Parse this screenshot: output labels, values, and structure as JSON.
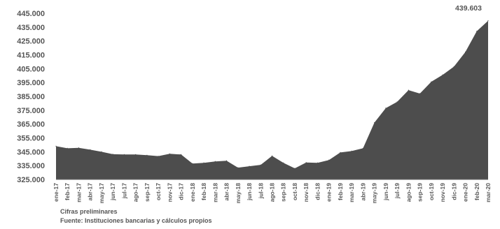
{
  "chart_data": {
    "type": "area",
    "title": "",
    "xlabel": "",
    "ylabel": "",
    "ylim": [
      325000,
      445000
    ],
    "y_ticks": [
      "445.000",
      "435.000",
      "425.000",
      "415.000",
      "405.000",
      "395.000",
      "385.000",
      "375.000",
      "365.000",
      "355.000",
      "345.000",
      "335.000",
      "325.000"
    ],
    "y_tick_values": [
      445000,
      435000,
      425000,
      415000,
      405000,
      395000,
      385000,
      375000,
      365000,
      355000,
      345000,
      335000,
      325000
    ],
    "x": [
      "ene-17",
      "feb-17",
      "mar-17",
      "abr-17",
      "may-17",
      "jun-17",
      "jul-17",
      "ago-17",
      "sep-17",
      "oct-17",
      "nov-17",
      "dic-17",
      "ene-18",
      "feb-18",
      "mar-18",
      "abr-18",
      "may-18",
      "jun-18",
      "jul-18",
      "ago-18",
      "sep-18",
      "oct-18",
      "nov-18",
      "dic-18",
      "ene-19",
      "feb-19",
      "mar-19",
      "abr-19",
      "may-19",
      "jun-19",
      "jul-19",
      "ago-19",
      "sep-19",
      "oct-19",
      "nov-19",
      "dic-19",
      "ene-20",
      "feb-20",
      "mar-20"
    ],
    "x_tick_labels": [
      "ene-17",
      "feb-17",
      "mar-17",
      "abr-17",
      "may-17",
      "jun-17",
      "jul-17",
      "ago-17",
      "sep-17",
      "oct-17",
      "nov-17",
      "dic-17",
      "ene-18",
      "feb-18",
      "mar-18",
      "abr-18",
      "may-18",
      "jun-18",
      "jul-18",
      "ago-18",
      "sep-18",
      "oct-18",
      "nov-18",
      "dic-18",
      "ene-19",
      "feb-19",
      "mar-19",
      "abr-19",
      "may-19",
      "jun-19",
      "jul-19",
      "ago-19",
      "sep-19",
      "oct-19",
      "nov-19",
      "dic-19",
      "ene-20",
      "feb-20",
      "mar-20"
    ],
    "series": [
      {
        "name": "",
        "color": "#4d4d4d",
        "values": [
          349000,
          347500,
          347800,
          346500,
          345000,
          343200,
          343000,
          343000,
          342500,
          341800,
          343500,
          343000,
          336500,
          337000,
          338000,
          338500,
          333500,
          334500,
          335500,
          342000,
          337000,
          333000,
          337200,
          337000,
          339000,
          344500,
          345500,
          347500,
          366000,
          376500,
          381000,
          389500,
          387000,
          395500,
          400500,
          406500,
          417000,
          432000,
          439603
        ]
      }
    ],
    "annotation": "439.603",
    "grid": false,
    "legend": "none"
  },
  "notes": {
    "line1": "Cifras preliminares",
    "line2": "Fuente: Instituciones bancarias y cálculos propios"
  }
}
